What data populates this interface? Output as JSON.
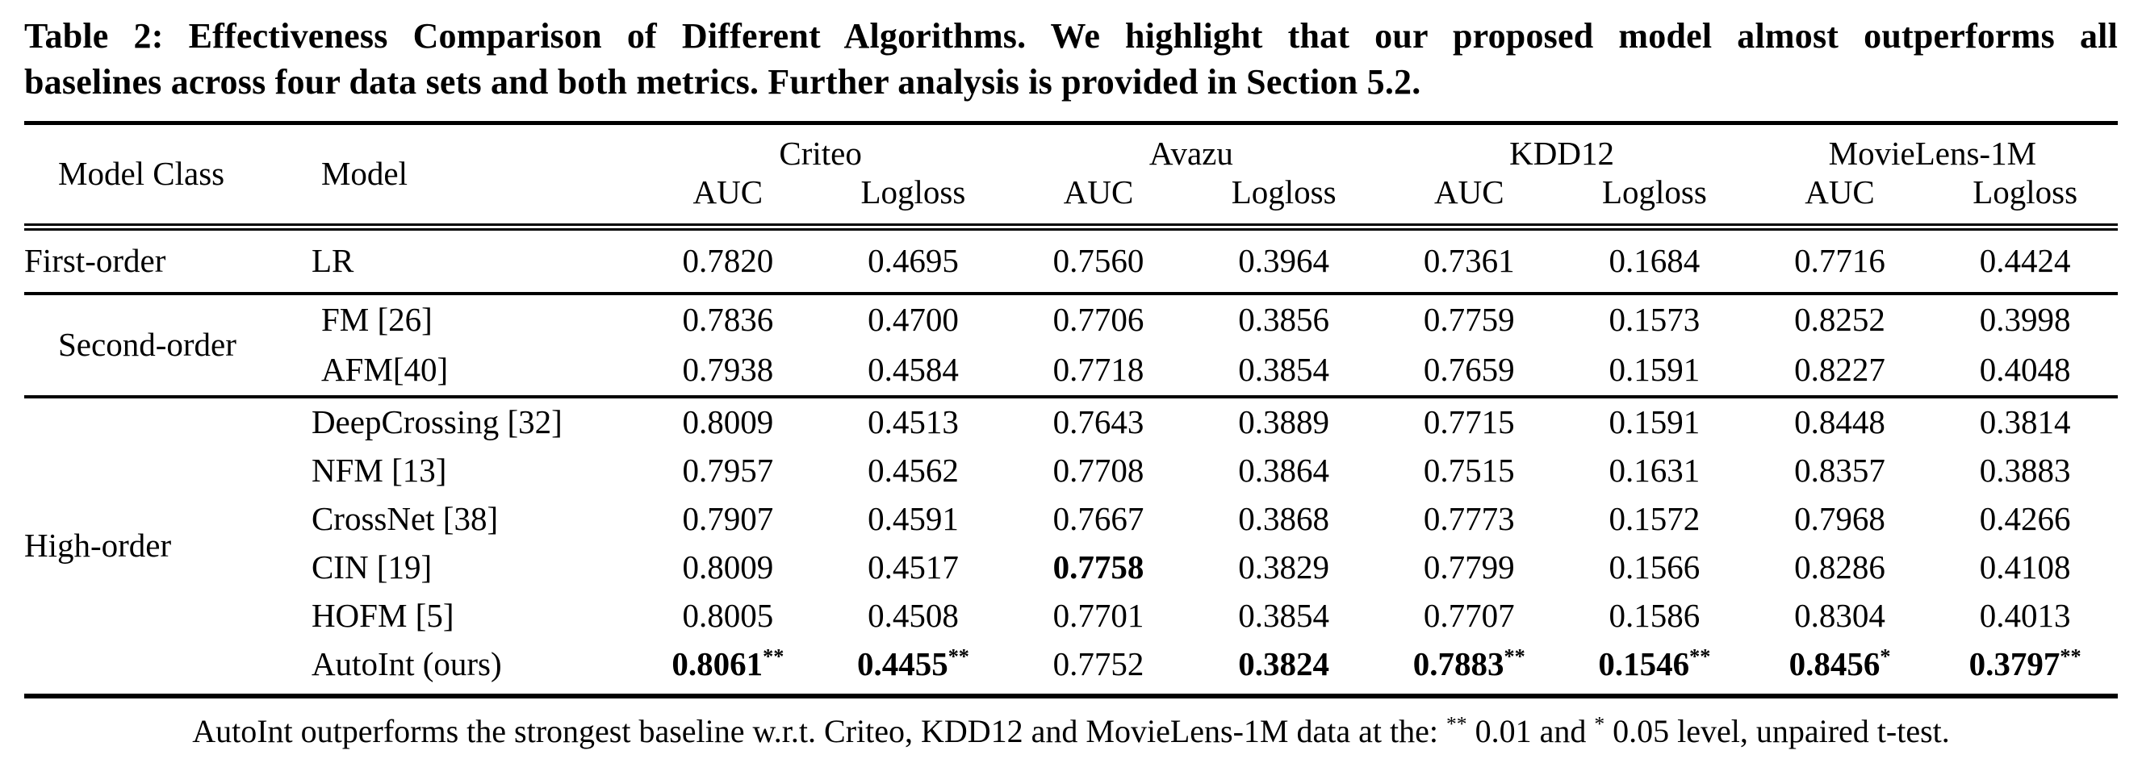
{
  "caption": {
    "line1": "Table 2: Effectiveness Comparison of Different Algorithms. We highlight that our proposed model almost outperforms all",
    "line2": "baselines across four data sets and both metrics. Further analysis is provided in Section 5.2."
  },
  "table": {
    "headers": {
      "model_class": "Model Class",
      "model": "Model",
      "datasets": [
        "Criteo",
        "Avazu",
        "KDD12",
        "MovieLens-1M"
      ],
      "metrics": [
        "AUC",
        "Logloss"
      ]
    },
    "sections": [
      {
        "model_class": "First-order",
        "rows": [
          {
            "model": "LR",
            "values": [
              "0.7820",
              "0.4695",
              "0.7560",
              "0.3964",
              "0.7361",
              "0.1684",
              "0.7716",
              "0.4424"
            ]
          }
        ]
      },
      {
        "model_class": "Second-order",
        "rows": [
          {
            "model": "FM [26]",
            "values": [
              "0.7836",
              "0.4700",
              "0.7706",
              "0.3856",
              "0.7759",
              "0.1573",
              "0.8252",
              "0.3998"
            ]
          },
          {
            "model": "AFM[40]",
            "values": [
              "0.7938",
              "0.4584",
              "0.7718",
              "0.3854",
              "0.7659",
              "0.1591",
              "0.8227",
              "0.4048"
            ]
          }
        ]
      },
      {
        "model_class": "High-order",
        "rows": [
          {
            "model": "DeepCrossing [32]",
            "values": [
              "0.8009",
              "0.4513",
              "0.7643",
              "0.3889",
              "0.7715",
              "0.1591",
              "0.8448",
              "0.3814"
            ]
          },
          {
            "model": "NFM [13]",
            "values": [
              "0.7957",
              "0.4562",
              "0.7708",
              "0.3864",
              "0.7515",
              "0.1631",
              "0.8357",
              "0.3883"
            ]
          },
          {
            "model": "CrossNet [38]",
            "values": [
              "0.7907",
              "0.4591",
              "0.7667",
              "0.3868",
              "0.7773",
              "0.1572",
              "0.7968",
              "0.4266"
            ]
          },
          {
            "model": "CIN [19]",
            "values": [
              "0.8009",
              "0.4517",
              "0.7758",
              "0.3829",
              "0.7799",
              "0.1566",
              "0.8286",
              "0.4108"
            ],
            "bold": [
              false,
              false,
              true,
              false,
              false,
              false,
              false,
              false
            ]
          },
          {
            "model": "HOFM [5]",
            "values": [
              "0.8005",
              "0.4508",
              "0.7701",
              "0.3854",
              "0.7707",
              "0.1586",
              "0.8304",
              "0.4013"
            ]
          },
          {
            "model": "AutoInt (ours)",
            "values": [
              "0.8061",
              "0.4455",
              "0.7752",
              "0.3824",
              "0.7883",
              "0.1546",
              "0.8456",
              "0.3797"
            ],
            "sups": [
              "**",
              "**",
              "",
              "",
              "**",
              "**",
              "*",
              "**"
            ],
            "bold": [
              true,
              true,
              false,
              true,
              true,
              true,
              true,
              true
            ]
          }
        ]
      }
    ]
  },
  "footnote": {
    "text1": "AutoInt outperforms the strongest baseline w.r.t. Criteo, KDD12 and MovieLens-1M data at the: ",
    "sup1": "**",
    "text2": " 0.01 and ",
    "sup2": "*",
    "text3": " 0.05 level, unpaired t-test."
  },
  "colors": {
    "text": "#000000",
    "background": "#ffffff",
    "rule": "#000000"
  }
}
